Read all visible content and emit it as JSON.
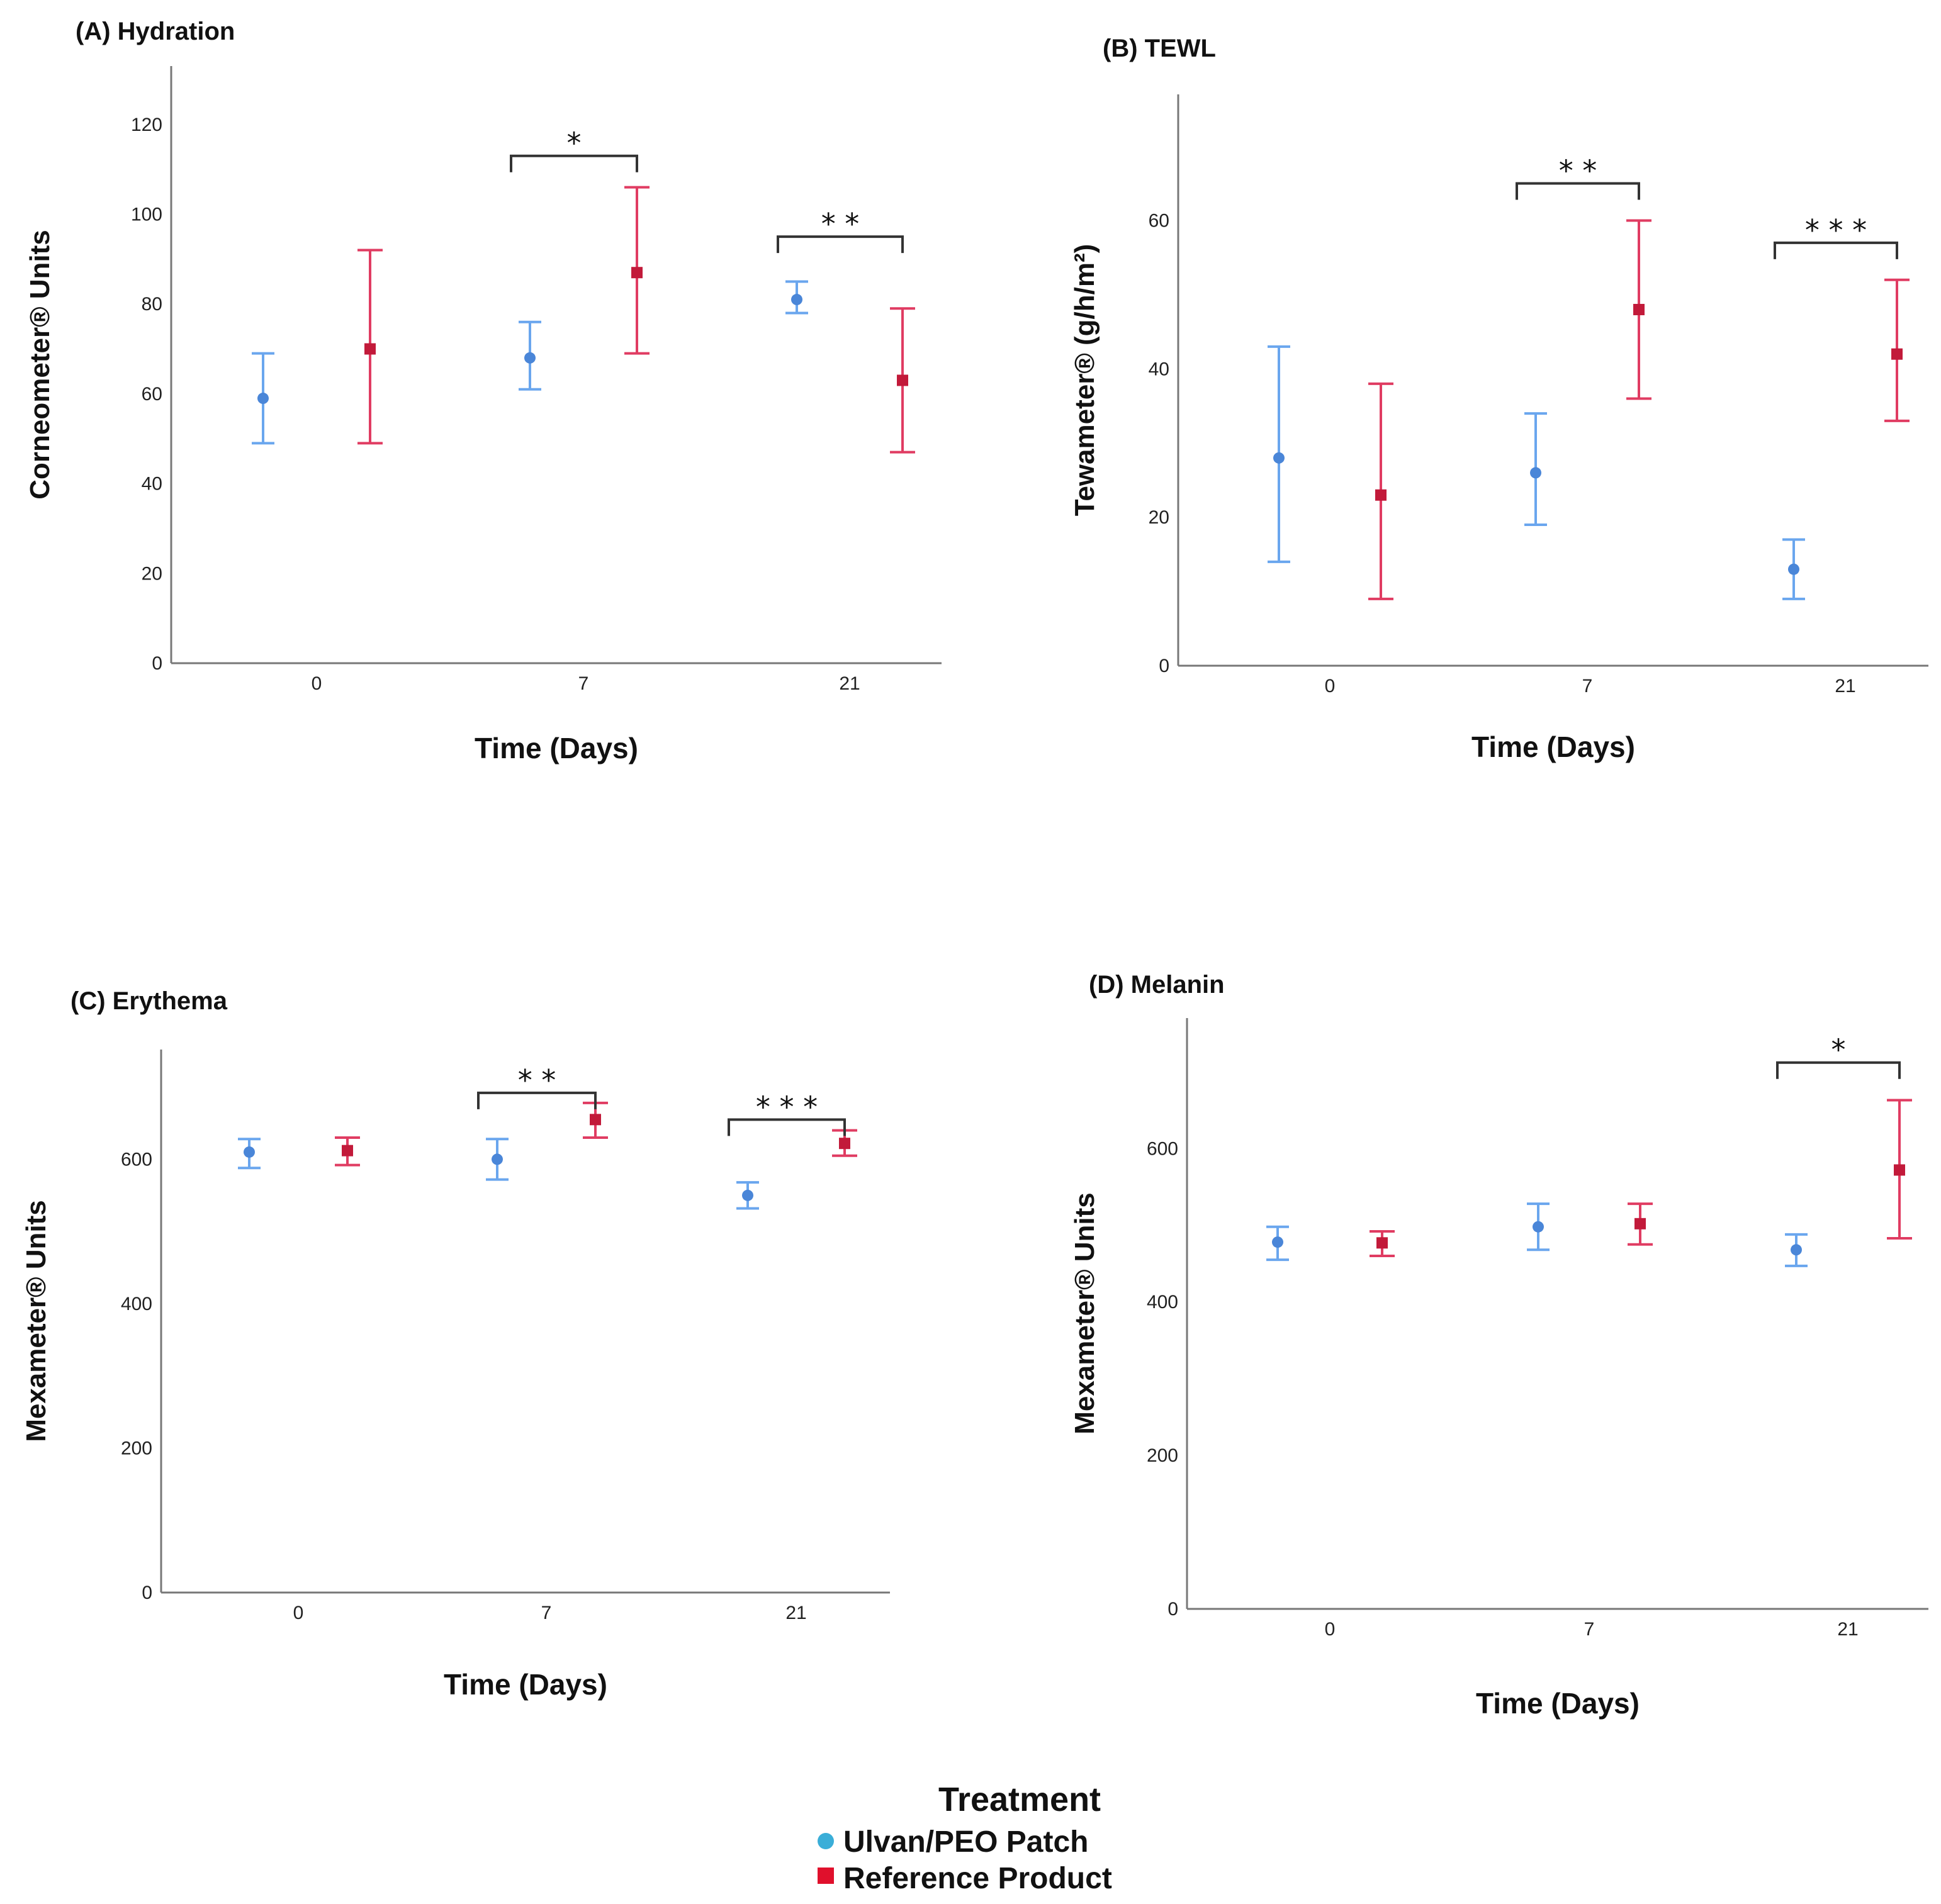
{
  "colors": {
    "ulvan": "#6aa6ee",
    "ulvan_point": "#4a86d8",
    "reference": "#e03c62",
    "reference_point": "#c21a3a",
    "legend_ulvan": "#3aaed8",
    "legend_reference": "#e0102c"
  },
  "legend": {
    "title": "Treatment",
    "items": [
      {
        "label": "Ulvan/PEO Patch",
        "marker": "circle"
      },
      {
        "label": "Reference Product",
        "marker": "square"
      }
    ]
  },
  "chart_data": [
    {
      "panel": "A",
      "type": "scatter",
      "title": "(A) Hydration",
      "xlabel": "Time (Days)",
      "ylabel": "Corneometer® Units",
      "categories": [
        "0",
        "7",
        "21"
      ],
      "ylim": [
        0,
        133
      ],
      "yticks": [
        0,
        20,
        40,
        60,
        80,
        100,
        120
      ],
      "series": [
        {
          "name": "Ulvan/PEO Patch",
          "marker": "circle",
          "values": [
            59,
            68,
            81
          ],
          "lower": [
            49,
            61,
            78
          ],
          "upper": [
            69,
            76,
            85
          ]
        },
        {
          "name": "Reference Product",
          "marker": "square",
          "values": [
            70,
            87,
            63
          ],
          "lower": [
            49,
            69,
            47
          ],
          "upper": [
            92,
            106,
            79
          ]
        }
      ],
      "significance": [
        {
          "category": "7",
          "label": "*",
          "value": 113
        },
        {
          "category": "21",
          "label": "* *",
          "value": 95
        }
      ]
    },
    {
      "panel": "B",
      "type": "scatter",
      "title": "(B) TEWL",
      "xlabel": "Time (Days)",
      "ylabel": "Tewameter® (g/h/m²)",
      "categories": [
        "0",
        "7",
        "21"
      ],
      "ylim": [
        0,
        77
      ],
      "yticks": [
        0,
        20,
        40,
        60
      ],
      "series": [
        {
          "name": "Ulvan/PEO Patch",
          "marker": "circle",
          "values": [
            28,
            26,
            13
          ],
          "lower": [
            14,
            19,
            9
          ],
          "upper": [
            43,
            34,
            17
          ]
        },
        {
          "name": "Reference Product",
          "marker": "square",
          "values": [
            23,
            48,
            42
          ],
          "lower": [
            9,
            36,
            33
          ],
          "upper": [
            38,
            60,
            52
          ]
        }
      ],
      "significance": [
        {
          "category": "7",
          "label": "* *",
          "value": 65
        },
        {
          "category": "21",
          "label": "* * *",
          "value": 57
        }
      ]
    },
    {
      "panel": "C",
      "type": "scatter",
      "title": "(C) Erythema",
      "xlabel": "Time (Days)",
      "ylabel": "Mexameter® Units",
      "categories": [
        "0",
        "7",
        "21"
      ],
      "ylim": [
        0,
        752
      ],
      "yticks": [
        0,
        200,
        400,
        600
      ],
      "series": [
        {
          "name": "Ulvan/PEO Patch",
          "marker": "circle",
          "values": [
            610,
            600,
            550
          ],
          "lower": [
            588,
            572,
            532
          ],
          "upper": [
            628,
            628,
            568
          ]
        },
        {
          "name": "Reference Product",
          "marker": "square",
          "values": [
            612,
            655,
            622
          ],
          "lower": [
            592,
            630,
            605
          ],
          "upper": [
            630,
            678,
            640
          ]
        }
      ],
      "significance": [
        {
          "category": "7",
          "label": "* *",
          "value": 692
        },
        {
          "category": "21",
          "label": "* * *",
          "value": 655
        }
      ]
    },
    {
      "panel": "D",
      "type": "scatter",
      "title": "(D) Melanin",
      "xlabel": "Time (Days)",
      "ylabel": "Mexameter® Units",
      "categories": [
        "0",
        "7",
        "21"
      ],
      "ylim": [
        0,
        770
      ],
      "yticks": [
        0,
        200,
        400,
        600
      ],
      "series": [
        {
          "name": "Ulvan/PEO Patch",
          "marker": "circle",
          "values": [
            478,
            498,
            468
          ],
          "lower": [
            455,
            468,
            447
          ],
          "upper": [
            498,
            528,
            488
          ]
        },
        {
          "name": "Reference Product",
          "marker": "square",
          "values": [
            477,
            502,
            572
          ],
          "lower": [
            460,
            475,
            483
          ],
          "upper": [
            492,
            528,
            663
          ]
        }
      ],
      "significance": [
        {
          "category": "21",
          "label": "*",
          "value": 712
        }
      ]
    }
  ]
}
